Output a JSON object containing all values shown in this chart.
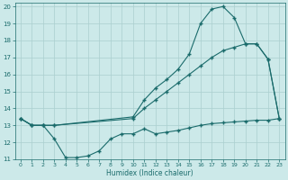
{
  "xlabel": "Humidex (Indice chaleur)",
  "xlim": [
    -0.5,
    23.5
  ],
  "ylim": [
    11,
    20.2
  ],
  "yticks": [
    11,
    12,
    13,
    14,
    15,
    16,
    17,
    18,
    19,
    20
  ],
  "xticks": [
    0,
    1,
    2,
    3,
    4,
    5,
    6,
    7,
    8,
    9,
    10,
    11,
    12,
    13,
    14,
    15,
    16,
    17,
    18,
    19,
    20,
    21,
    22,
    23
  ],
  "bg_color": "#cce9e9",
  "grid_color": "#aacfcf",
  "line_color": "#1a6b6b",
  "line1_x": [
    0,
    1,
    2,
    3,
    10,
    11,
    12,
    13,
    14,
    15,
    16,
    17,
    18,
    19,
    20,
    21,
    22,
    23
  ],
  "line1_y": [
    13.4,
    13.0,
    13.0,
    13.0,
    13.5,
    14.5,
    15.2,
    15.7,
    16.3,
    17.2,
    19.0,
    19.85,
    20.0,
    19.35,
    17.8,
    17.8,
    16.9,
    13.4
  ],
  "line2_x": [
    0,
    1,
    2,
    3,
    10,
    11,
    12,
    13,
    14,
    15,
    16,
    17,
    18,
    19,
    20,
    21,
    22,
    23
  ],
  "line2_y": [
    13.4,
    13.0,
    13.0,
    13.0,
    13.4,
    14.0,
    14.5,
    15.0,
    15.5,
    16.0,
    16.5,
    17.0,
    17.4,
    17.6,
    17.8,
    17.8,
    16.9,
    13.4
  ],
  "line3_x": [
    0,
    1,
    2,
    3,
    4,
    5,
    6,
    7,
    8,
    9,
    10,
    11,
    12,
    13,
    14,
    15,
    16,
    17,
    18,
    19,
    20,
    21,
    22,
    23
  ],
  "line3_y": [
    13.4,
    13.0,
    13.0,
    12.2,
    11.1,
    11.1,
    11.2,
    11.5,
    12.2,
    12.5,
    12.5,
    12.8,
    12.5,
    12.6,
    12.7,
    12.85,
    13.0,
    13.1,
    13.15,
    13.2,
    13.25,
    13.3,
    13.3,
    13.4
  ]
}
